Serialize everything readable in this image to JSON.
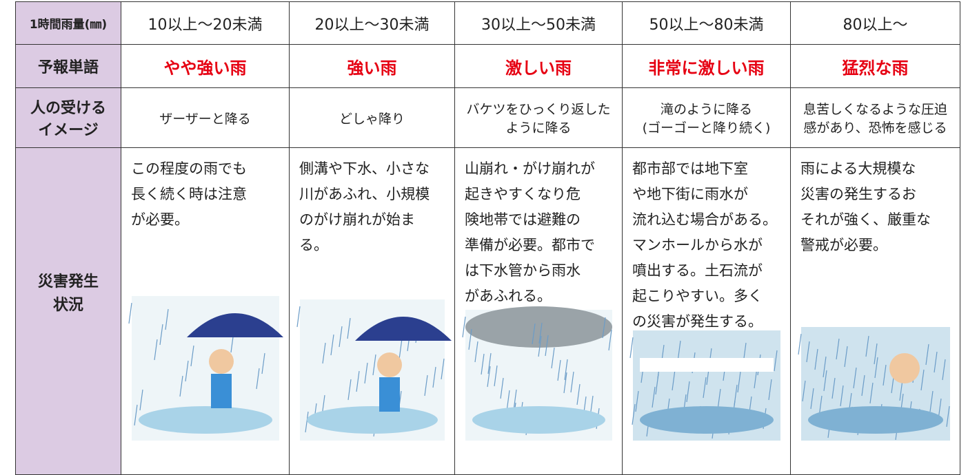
{
  "table": {
    "rows": [
      [
        "1時間雨量(㎜)",
        "10以上〜20未満",
        "20以上〜30未満",
        "30以上〜50未満",
        "50以上〜80未満",
        "80以上〜"
      ],
      [
        "予報単語",
        "やや強い雨",
        "強い雨",
        "激しい雨",
        "非常に激しい雨",
        "猛烈な雨"
      ],
      [
        [
          "人の受ける",
          "イメージ"
        ],
        "ザーザーと降る",
        "どしゃ降り",
        [
          "バケツをひっくり返した",
          "ように降る"
        ],
        [
          "滝のように降る",
          "(ゴーゴーと降り続く)"
        ],
        [
          "息苦しくなるような圧迫",
          "感があり、恐怖を感じる"
        ]
      ],
      [
        [
          "災害発生",
          "状況"
        ],
        [
          "この程度の雨でも",
          "長く続く時は注意",
          "が必要。"
        ],
        [
          "側溝や下水、小さな",
          "川があふれ、小規模",
          "のがけ崩れが始ま",
          "る。"
        ],
        [
          "山崩れ・がけ崩れが",
          "起きやすくなり危",
          "険地帯では避難の",
          "準備が必要。都市で",
          "は下水管から雨水",
          "があふれる。"
        ],
        [
          "都市部では地下室",
          "や地下街に雨水が",
          "流れ込む場合がある。",
          "マンホールから水が",
          "噴出する。土石流が",
          "起こりやすい。多く",
          "の災害が発生する。"
        ],
        [
          "雨による大規模な",
          "災害の発生するお",
          "それが強く、厳重な",
          "警戒が必要。"
        ]
      ]
    ]
  }
}
